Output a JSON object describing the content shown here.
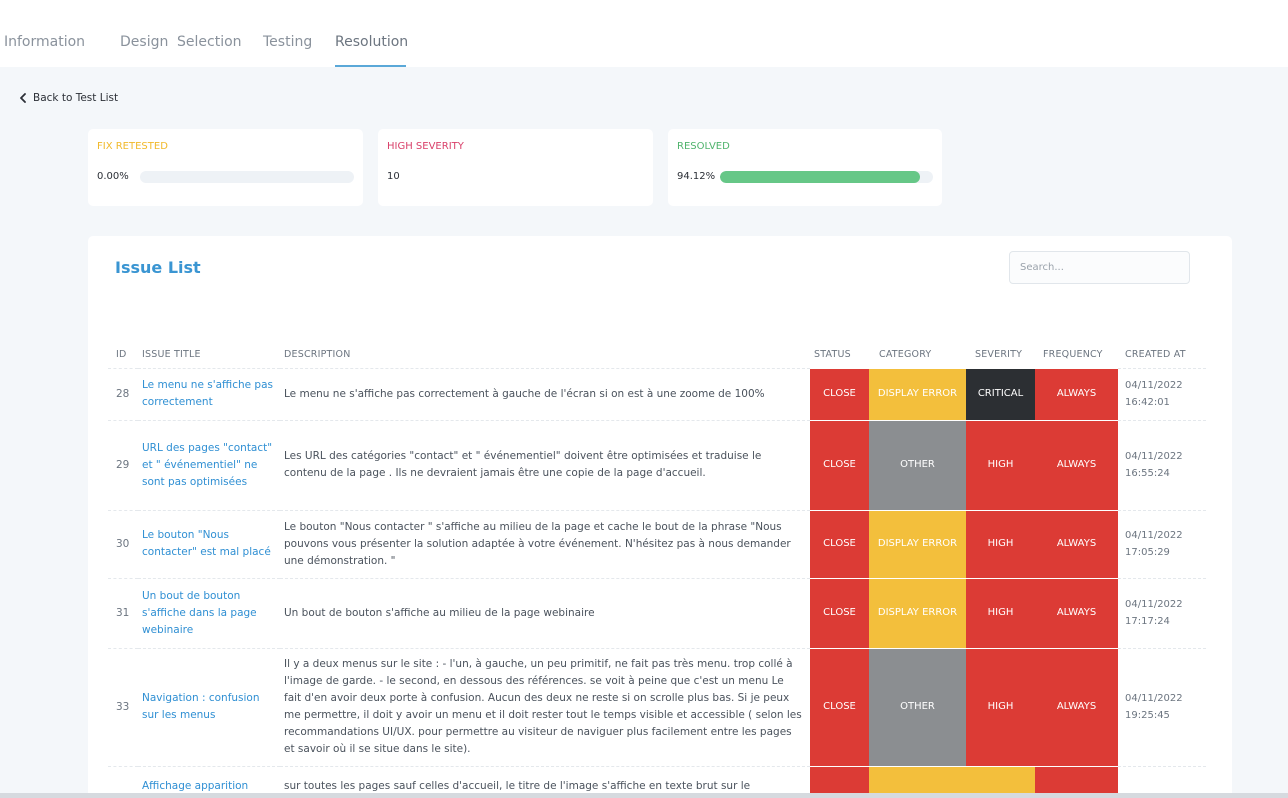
{
  "tabs": [
    {
      "label": "Information"
    },
    {
      "label": "Design"
    },
    {
      "label": "Selection"
    },
    {
      "label": "Testing"
    },
    {
      "label": "Resolution"
    }
  ],
  "active_tab": "Resolution",
  "back_link": "Back to Test List",
  "stats": [
    {
      "title": "FIX RETESTED",
      "value": "0.00%",
      "progress": 0.0,
      "color": "#f1b92a"
    },
    {
      "title": "HIGH SEVERITY",
      "value": "10",
      "color": "#d9406a"
    },
    {
      "title": "RESOLVED",
      "value": "94.12%",
      "progress": 94.12,
      "color": "#4fb36c"
    }
  ],
  "issue_list": {
    "heading": "Issue List",
    "search_placeholder": "Search...",
    "columns": {
      "id": "ID",
      "title": "ISSUE TITLE",
      "description": "DESCRIPTION",
      "status": "STATUS",
      "category": "CATEGORY",
      "severity": "SEVERITY",
      "frequency": "FREQUENCY",
      "created": "CREATED AT"
    },
    "rows": [
      {
        "id": "28",
        "title": "Le menu ne s'affiche pas correctement",
        "description": "Le menu ne s'affiche pas correctement à gauche de l'écran si on est à une zoome de 100%",
        "status": "CLOSE",
        "category": "DISPLAY ERROR",
        "severity": "CRITICAL",
        "frequency": "ALWAYS",
        "created": "04/11/2022 16:42:01"
      },
      {
        "id": "29",
        "title": "URL des pages \"contact\" et \" événementiel\" ne sont pas optimisées",
        "description": "Les URL des catégories \"contact\" et \" événementiel\" doivent être optimisées et traduise le contenu de la page . Ils ne devraient jamais être une copie de la page d'accueil.",
        "status": "CLOSE",
        "category": "OTHER",
        "severity": "HIGH",
        "frequency": "ALWAYS",
        "created": "04/11/2022 16:55:24"
      },
      {
        "id": "30",
        "title": "Le bouton \"Nous contacter\" est mal placé",
        "description": "Le bouton \"Nous contacter \" s'affiche au milieu de la page et cache le bout de la phrase \"Nous pouvons vous présenter la solution adaptée à votre événement. N'hésitez pas à nous demander une démonstration. \"",
        "status": "CLOSE",
        "category": "DISPLAY ERROR",
        "severity": "HIGH",
        "frequency": "ALWAYS",
        "created": "04/11/2022 17:05:29"
      },
      {
        "id": "31",
        "title": "Un bout de bouton s'affiche dans la page webinaire",
        "description": "Un bout de bouton s'affiche au milieu de la page webinaire",
        "status": "CLOSE",
        "category": "DISPLAY ERROR",
        "severity": "HIGH",
        "frequency": "ALWAYS",
        "created": "04/11/2022 17:17:24"
      },
      {
        "id": "33",
        "title": "Navigation : confusion sur les menus",
        "description": "Il y a deux menus sur le site : - l'un, à gauche, un peu primitif, ne fait pas très menu. trop collé à l'image de garde. - le second, en dessous des références. se voit à peine que c'est un menu Le fait d'en avoir deux porte à confusion. Aucun des deux ne reste si on scrolle plus bas. Si je peux me permettre, il doit y avoir un menu et il doit rester tout le temps visible et accessible ( selon les recommandations UI/UX. pour permettre au visiteur de naviguer plus facilement entre les pages et savoir où il se situe dans le site).",
        "status": "CLOSE",
        "category": "OTHER",
        "severity": "HIGH",
        "frequency": "ALWAYS",
        "created": "04/11/2022 19:25:45"
      },
      {
        "id": "",
        "title": "Affichage apparition",
        "description": "sur toutes les pages sauf celles d'accueil, le titre de l'image s'affiche en texte brut sur le",
        "status": "",
        "category": "",
        "severity": "",
        "frequency": "",
        "created": ""
      }
    ]
  },
  "badge_colors": {
    "CLOSE": "#dc3b35",
    "DISPLAY ERROR": "#f3bf3c",
    "OTHER": "#8b8e91",
    "CRITICAL": "#2c2f33",
    "HIGH": "#dc3b35",
    "ALWAYS": "#dc3b35"
  }
}
